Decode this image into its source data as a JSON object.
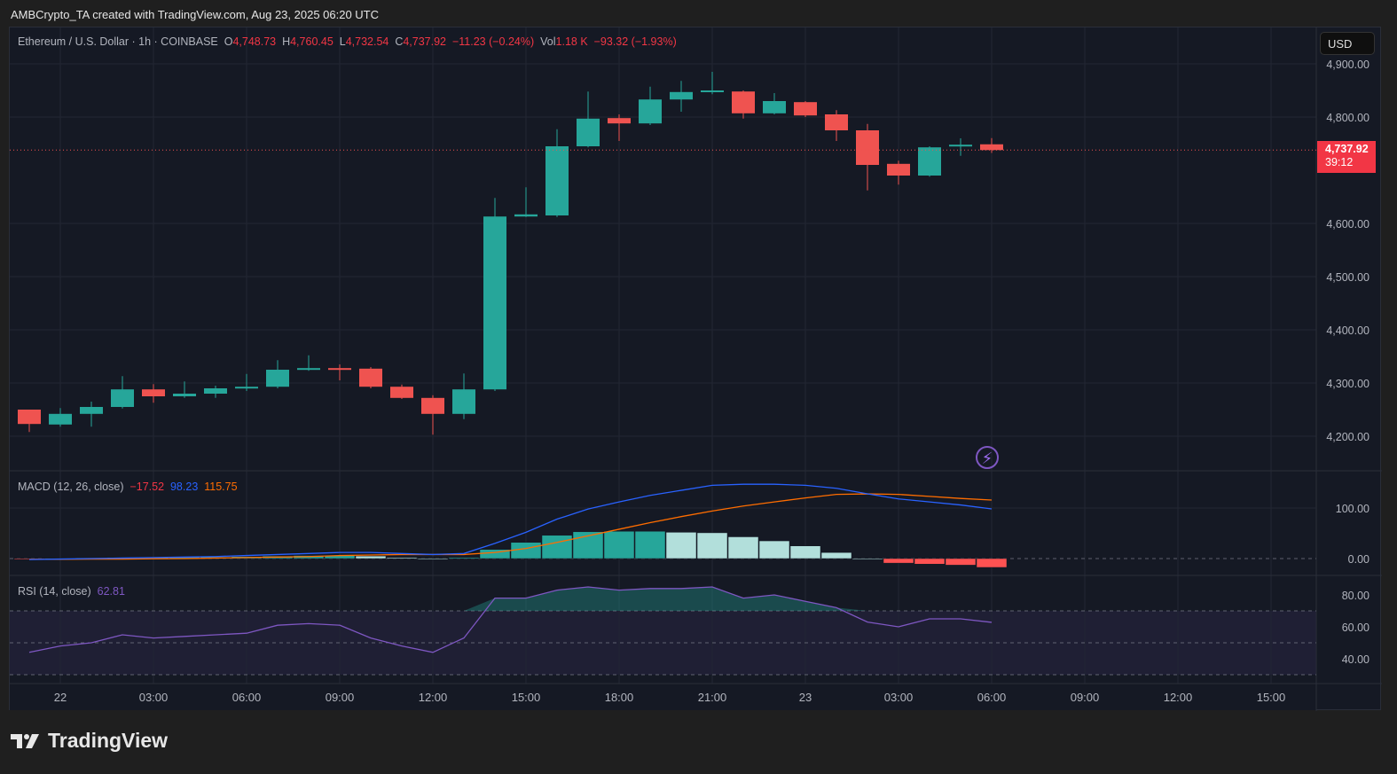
{
  "header": {
    "credit": "AMBCrypto_TA created with TradingView.com, Aug 23, 2025 06:20 UTC"
  },
  "legend": {
    "symbol": "Ethereum / U.S. Dollar · 1h · COINBASE",
    "o_label": "O",
    "o": "4,748.73",
    "h_label": "H",
    "h": "4,760.45",
    "l_label": "L",
    "l": "4,732.54",
    "c_label": "C",
    "c": "4,737.92",
    "change": "−11.23 (−0.24%)",
    "vol_label": "Vol",
    "vol": "1.18 K",
    "vol_change": "−93.32 (−1.93%)"
  },
  "currency_button": "USD",
  "last_price": {
    "price": "4,737.92",
    "countdown": "39:12"
  },
  "macd_legend": {
    "title": "MACD (12, 26, close)",
    "hist": "−17.52",
    "macd": "98.23",
    "signal": "115.75"
  },
  "rsi_legend": {
    "title": "RSI (14, close)",
    "value": "62.81"
  },
  "footer": {
    "logo": "TradingView"
  },
  "colors": {
    "up": "#26a69a",
    "down": "#ef5350",
    "macd": "#2962ff",
    "signal": "#ff6d00",
    "rsi": "#7e57c2",
    "hist_up_fading": "#b2dfdb",
    "hist_down": "#ff5252",
    "hist_down_fading": "#ffcdd2"
  },
  "icons": [
    "lightning-icon",
    "tradingview-logo-icon"
  ],
  "chart_data": [
    {
      "type": "candlestick",
      "price_ticks": [
        "4,900.00",
        "4,800.00",
        "4,600.00",
        "4,500.00",
        "4,400.00",
        "4,300.00",
        "4,200.00"
      ],
      "price_tick_values": [
        4900,
        4800,
        4600,
        4500,
        4400,
        4300,
        4200
      ],
      "time_labels": [
        "22",
        "03:00",
        "06:00",
        "09:00",
        "12:00",
        "15:00",
        "18:00",
        "21:00",
        "23",
        "03:00",
        "06:00",
        "09:00",
        "12:00",
        "15:00"
      ],
      "time_label_hour_index": [
        1,
        4,
        7,
        10,
        13,
        16,
        19,
        22,
        25,
        28,
        31,
        34,
        37,
        40
      ],
      "interval": "1h",
      "ohlc": [
        [
          4250,
          4250,
          4208,
          4223
        ],
        [
          4222,
          4253,
          4218,
          4242
        ],
        [
          4242,
          4265,
          4218,
          4255
        ],
        [
          4255,
          4313,
          4252,
          4288
        ],
        [
          4288,
          4298,
          4263,
          4275
        ],
        [
          4275,
          4303,
          4272,
          4280
        ],
        [
          4280,
          4295,
          4272,
          4290
        ],
        [
          4290,
          4317,
          4285,
          4293
        ],
        [
          4293,
          4343,
          4290,
          4325
        ],
        [
          4325,
          4352,
          4323,
          4328
        ],
        [
          4328,
          4335,
          4305,
          4325
        ],
        [
          4327,
          4330,
          4290,
          4293
        ],
        [
          4293,
          4297,
          4270,
          4272
        ],
        [
          4272,
          4277,
          4203,
          4242
        ],
        [
          4242,
          4318,
          4232,
          4288
        ],
        [
          4288,
          4648,
          4285,
          4613
        ],
        [
          4613,
          4668,
          4612,
          4617
        ],
        [
          4615,
          4777,
          4612,
          4745
        ],
        [
          4745,
          4848,
          4743,
          4797
        ],
        [
          4798,
          4805,
          4755,
          4788
        ],
        [
          4788,
          4857,
          4785,
          4833
        ],
        [
          4833,
          4868,
          4810,
          4847
        ],
        [
          4847,
          4885,
          4843,
          4850
        ],
        [
          4848,
          4850,
          4797,
          4807
        ],
        [
          4807,
          4845,
          4805,
          4830
        ],
        [
          4828,
          4830,
          4800,
          4803
        ],
        [
          4805,
          4813,
          4755,
          4775
        ],
        [
          4775,
          4787,
          4662,
          4710
        ],
        [
          4712,
          4718,
          4673,
          4690
        ],
        [
          4690,
          4745,
          4688,
          4743
        ],
        [
          4745,
          4760,
          4727,
          4748
        ],
        [
          4748.73,
          4760.45,
          4732.54,
          4737.92
        ]
      ]
    },
    {
      "type": "line",
      "title": "MACD (12, 26, close)",
      "y_ticks": [
        "100.00",
        "0.00"
      ],
      "y_tick_values": [
        100,
        0
      ],
      "macd": [
        -2,
        -1,
        0,
        1,
        2,
        3,
        4,
        6,
        8,
        10,
        12,
        12,
        10,
        8,
        10,
        30,
        52,
        78,
        98,
        112,
        125,
        135,
        145,
        147,
        147,
        145,
        139,
        128,
        118,
        112,
        106,
        98.23
      ],
      "signal": [
        -1.5,
        -1.5,
        -1,
        -1,
        -0.5,
        0,
        1,
        2,
        3,
        4,
        6,
        7,
        8,
        8,
        8,
        12,
        20,
        32,
        45,
        58,
        71,
        83,
        94,
        104,
        112,
        120,
        127,
        128,
        127,
        123,
        119,
        115.75
      ]
    },
    {
      "type": "line",
      "title": "RSI (14, close)",
      "y_ticks": [
        "80.00",
        "60.00",
        "40.00"
      ],
      "y_tick_values": [
        80,
        60,
        40
      ],
      "bands": [
        70,
        50,
        30
      ],
      "rsi": [
        44,
        48,
        50,
        55,
        53,
        54,
        55,
        56,
        61,
        62,
        61,
        53,
        48,
        44,
        53,
        78,
        78,
        83,
        85,
        83,
        84,
        84,
        85,
        78,
        80,
        76,
        72,
        63,
        60,
        65,
        65,
        62.81
      ]
    }
  ]
}
